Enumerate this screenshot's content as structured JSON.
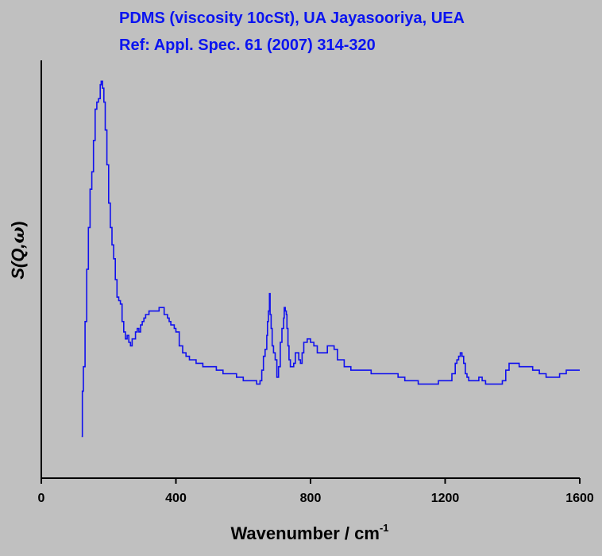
{
  "chart_data": {
    "type": "line",
    "title": "PDMS (viscosity 10cSt), UA Jayasooriya, UEA",
    "subtitle": "Ref: Appl. Spec. 61 (2007) 314-320",
    "xlabel": "Wavenumber / cm",
    "xlabel_superscript": "-1",
    "ylabel_main": "S(Q,",
    "ylabel_symbol": "ω",
    "ylabel_close": ")",
    "xlim": [
      0,
      1600
    ],
    "ylim": [
      0,
      120
    ],
    "x_ticks": [
      "0",
      "400",
      "800",
      "1200",
      "1600"
    ],
    "y_ticks_labeled": false,
    "legend": "none",
    "grid": false,
    "colors": {
      "series": "#1010ee",
      "title": "#0a14f0",
      "axes": "#000000",
      "background": "#c0c0c0"
    },
    "series": [
      {
        "x": [
          120,
          122,
          125,
          130,
          135,
          140,
          145,
          150,
          155,
          160,
          165,
          170,
          175,
          178,
          182,
          186,
          190,
          195,
          200,
          205,
          210,
          215,
          220,
          225,
          230,
          235,
          240,
          245,
          250,
          255,
          260,
          265,
          270,
          275,
          280,
          285,
          290,
          295,
          300,
          305,
          310,
          315,
          320,
          330,
          340,
          350,
          360,
          365,
          370,
          375,
          380,
          385,
          390,
          395,
          400,
          410,
          420,
          430,
          440,
          450,
          460,
          480,
          500,
          520,
          540,
          560,
          580,
          600,
          620,
          640,
          650,
          655,
          660,
          665,
          670,
          672,
          675,
          678,
          680,
          683,
          686,
          690,
          695,
          700,
          705,
          710,
          715,
          720,
          722,
          725,
          728,
          730,
          733,
          736,
          740,
          745,
          750,
          755,
          760,
          765,
          770,
          775,
          780,
          790,
          800,
          810,
          820,
          830,
          840,
          850,
          860,
          870,
          880,
          890,
          900,
          920,
          940,
          960,
          980,
          1000,
          1020,
          1040,
          1060,
          1080,
          1100,
          1120,
          1140,
          1160,
          1180,
          1200,
          1220,
          1230,
          1235,
          1240,
          1245,
          1250,
          1255,
          1260,
          1265,
          1270,
          1280,
          1290,
          1300,
          1310,
          1320,
          1340,
          1360,
          1370,
          1380,
          1390,
          1400,
          1410,
          1420,
          1440,
          1460,
          1480,
          1500,
          1520,
          1540,
          1560,
          1580,
          1600
        ],
        "y": [
          12,
          25,
          32,
          45,
          60,
          72,
          83,
          88,
          97,
          106,
          108,
          109,
          113,
          114,
          112,
          108,
          100,
          90,
          79,
          72,
          67,
          63,
          57,
          52,
          51,
          50,
          45,
          42,
          40,
          41,
          39,
          38,
          40,
          40,
          42,
          43,
          42,
          44,
          45,
          46,
          47,
          47,
          48,
          48,
          48,
          49,
          49,
          47,
          47,
          46,
          45,
          44,
          44,
          43,
          42,
          38,
          36,
          35,
          34,
          34,
          33,
          32,
          32,
          31,
          30,
          30,
          29,
          28,
          28,
          27,
          28,
          31,
          35,
          37,
          41,
          45,
          48,
          53,
          47,
          43,
          38,
          36,
          34,
          29,
          32,
          39,
          43,
          46,
          49,
          48,
          47,
          43,
          38,
          34,
          32,
          32,
          33,
          36,
          36,
          34,
          33,
          36,
          39,
          40,
          39,
          38,
          36,
          36,
          36,
          38,
          38,
          37,
          34,
          34,
          32,
          31,
          31,
          31,
          30,
          30,
          30,
          30,
          29,
          28,
          28,
          27,
          27,
          27,
          28,
          28,
          30,
          33,
          34,
          35,
          36,
          35,
          33,
          30,
          29,
          28,
          28,
          28,
          29,
          28,
          27,
          27,
          27,
          28,
          31,
          33,
          33,
          33,
          32,
          32,
          31,
          30,
          29,
          29,
          30,
          31,
          31,
          31
        ]
      }
    ]
  }
}
